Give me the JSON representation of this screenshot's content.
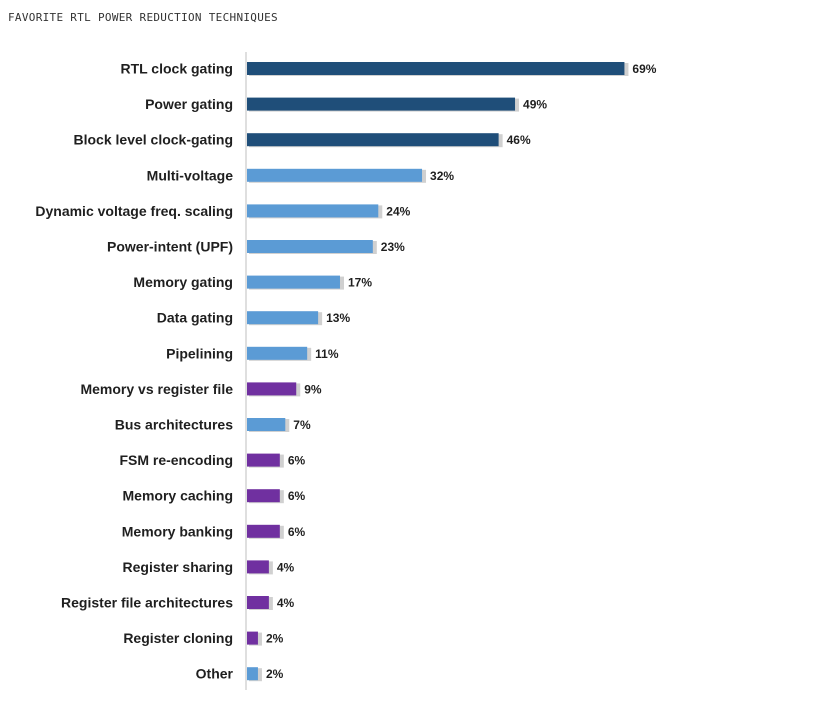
{
  "chart_data": {
    "type": "bar",
    "orientation": "horizontal",
    "title": "FAVORITE RTL POWER REDUCTION TECHNIQUES",
    "value_suffix": "%",
    "xlim": [
      0,
      75
    ],
    "grid": false,
    "categories": [
      "RTL clock gating",
      "Power gating",
      "Block level clock-gating",
      "Multi-voltage",
      "Dynamic voltage freq. scaling",
      "Power-intent (UPF)",
      "Memory gating",
      "Data gating",
      "Pipelining",
      "Memory vs register file",
      "Bus architectures",
      "FSM re-encoding",
      "Memory caching",
      "Memory banking",
      "Register sharing",
      "Register file architectures",
      "Register cloning",
      "Other"
    ],
    "values": [
      69,
      49,
      46,
      32,
      24,
      23,
      17,
      13,
      11,
      9,
      7,
      6,
      6,
      6,
      4,
      4,
      2,
      2
    ],
    "bar_colors": [
      "#1f4e79",
      "#1f4e79",
      "#1f4e79",
      "#5b9bd5",
      "#5b9bd5",
      "#5b9bd5",
      "#5b9bd5",
      "#5b9bd5",
      "#5b9bd5",
      "#7030a0",
      "#5b9bd5",
      "#7030a0",
      "#7030a0",
      "#7030a0",
      "#7030a0",
      "#7030a0",
      "#7030a0",
      "#5b9bd5"
    ]
  }
}
